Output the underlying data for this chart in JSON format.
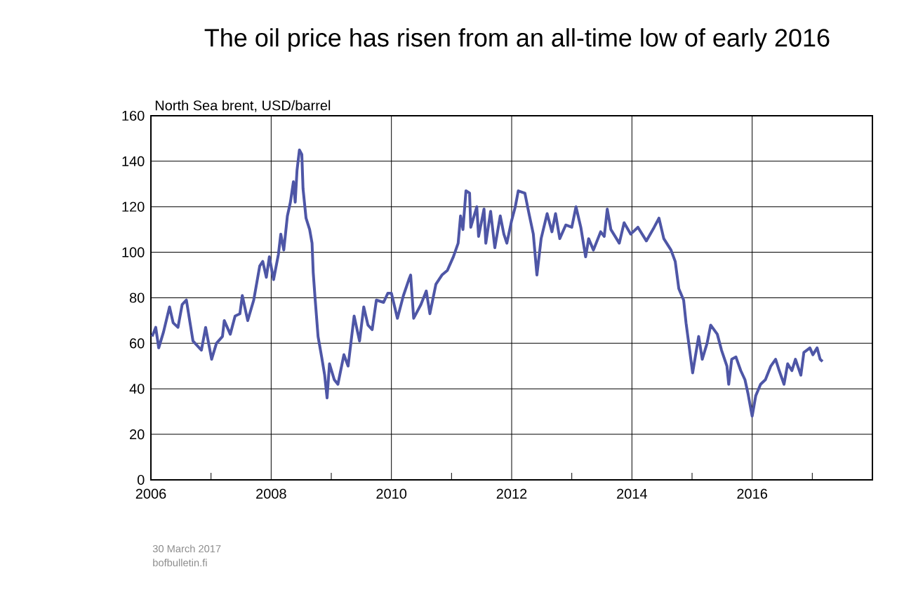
{
  "chart_data": {
    "type": "line",
    "title": "The oil price has risen from an all-time low of early 2016",
    "ylabel": "North Sea brent, USD/barrel",
    "annotations": [
      "30 March 2017",
      "bofbulletin.fi"
    ],
    "xlim": [
      2006,
      2018
    ],
    "xticks": [
      2006,
      {
        "value": 2007,
        "label": null
      },
      2008,
      {
        "value": 2009,
        "label": null
      },
      2010,
      {
        "value": 2011,
        "label": null
      },
      2012,
      {
        "value": 2013,
        "label": null
      },
      2014,
      {
        "value": 2015,
        "label": null
      },
      2016,
      {
        "value": 2017,
        "label": null
      }
    ],
    "ylim": [
      0,
      160
    ],
    "yticks": [
      0,
      20,
      40,
      60,
      80,
      100,
      120,
      140,
      160
    ],
    "grid": true,
    "line_style": "solid",
    "series": [
      {
        "color": "#4e56a6",
        "x": [
          2006.02,
          2006.08,
          2006.13,
          2006.21,
          2006.31,
          2006.37,
          2006.45,
          2006.52,
          2006.59,
          2006.7,
          2006.84,
          2006.91,
          2007.01,
          2007.09,
          2007.19,
          2007.22,
          2007.32,
          2007.4,
          2007.48,
          2007.52,
          2007.61,
          2007.71,
          2007.81,
          2007.86,
          2007.92,
          2007.97,
          2008.04,
          2008.12,
          2008.16,
          2008.21,
          2008.27,
          2008.32,
          2008.37,
          2008.4,
          2008.43,
          2008.47,
          2008.51,
          2008.53,
          2008.58,
          2008.64,
          2008.68,
          2008.7,
          2008.73,
          2008.78,
          2008.84,
          2008.89,
          2008.93,
          2008.97,
          2009.05,
          2009.11,
          2009.21,
          2009.28,
          2009.38,
          2009.47,
          2009.54,
          2009.61,
          2009.68,
          2009.75,
          2009.87,
          2009.94,
          2010.0,
          2010.1,
          2010.2,
          2010.29,
          2010.32,
          2010.37,
          2010.49,
          2010.58,
          2010.64,
          2010.74,
          2010.84,
          2010.93,
          2011.03,
          2011.11,
          2011.15,
          2011.19,
          2011.24,
          2011.3,
          2011.32,
          2011.42,
          2011.45,
          2011.54,
          2011.57,
          2011.65,
          2011.72,
          2011.81,
          2011.87,
          2011.92,
          2012.0,
          2012.06,
          2012.11,
          2012.22,
          2012.28,
          2012.36,
          2012.42,
          2012.49,
          2012.59,
          2012.67,
          2012.73,
          2012.8,
          2012.9,
          2013.0,
          2013.07,
          2013.15,
          2013.23,
          2013.28,
          2013.36,
          2013.48,
          2013.54,
          2013.59,
          2013.65,
          2013.79,
          2013.87,
          2013.98,
          2014.1,
          2014.24,
          2014.37,
          2014.45,
          2014.53,
          2014.65,
          2014.72,
          2014.78,
          2014.86,
          2014.9,
          2014.95,
          2015.01,
          2015.11,
          2015.17,
          2015.25,
          2015.31,
          2015.42,
          2015.49,
          2015.58,
          2015.61,
          2015.66,
          2015.73,
          2015.81,
          2015.88,
          2015.93,
          2016.0,
          2016.06,
          2016.14,
          2016.22,
          2016.31,
          2016.39,
          2016.45,
          2016.53,
          2016.59,
          2016.66,
          2016.72,
          2016.81,
          2016.86,
          2016.96,
          2017.01,
          2017.08,
          2017.13,
          2017.17
        ],
        "values": [
          63,
          67,
          58,
          65,
          76,
          69,
          67,
          77,
          79,
          61,
          57,
          67,
          53,
          60,
          63,
          70,
          64,
          72,
          73,
          81,
          70,
          79,
          94,
          96,
          89,
          98,
          88,
          99,
          108,
          101,
          116,
          122,
          131,
          122,
          136,
          145,
          143,
          128,
          115,
          110,
          104,
          91,
          80,
          63,
          54,
          46,
          36,
          51,
          44,
          42,
          55,
          50,
          72,
          61,
          76,
          68,
          66,
          79,
          78,
          82,
          82,
          71,
          81,
          88,
          90,
          71,
          77,
          83,
          73,
          86,
          90,
          92,
          98,
          104,
          116,
          110,
          127,
          126,
          111,
          120,
          107,
          119,
          104,
          118,
          102,
          116,
          108,
          104,
          114,
          120,
          127,
          126,
          118,
          108,
          90,
          106,
          117,
          109,
          117,
          106,
          112,
          111,
          120,
          111,
          98,
          106,
          101,
          109,
          107,
          119,
          110,
          104,
          113,
          108,
          111,
          105,
          111,
          115,
          106,
          101,
          96,
          84,
          79,
          69,
          59,
          47,
          63,
          53,
          60,
          68,
          64,
          57,
          50,
          42,
          53,
          54,
          48,
          44,
          38,
          28,
          37,
          42,
          44,
          50,
          53,
          48,
          42,
          51,
          48,
          53,
          46,
          56,
          58,
          55,
          58,
          53,
          52
        ]
      }
    ]
  }
}
